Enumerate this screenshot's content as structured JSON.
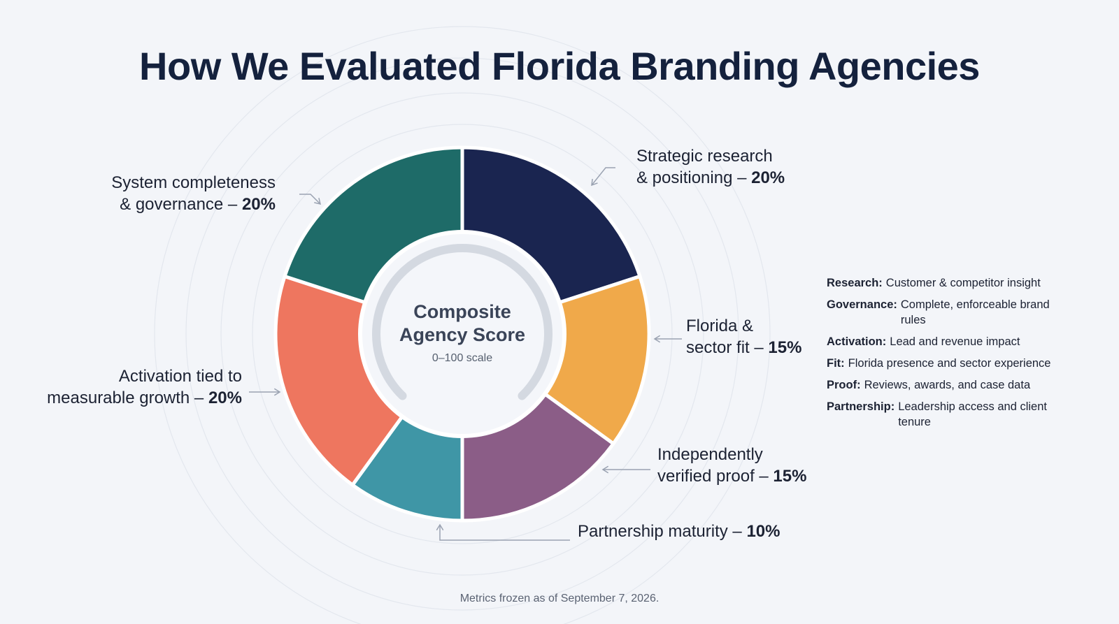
{
  "title": "How We Evaluated Florida Branding Agencies",
  "center": {
    "title_line1": "Composite",
    "title_line2": "Agency Score",
    "subtitle": "0–100 scale"
  },
  "labels": {
    "strategic": {
      "line1": "Strategic research",
      "line2_text": "& positioning – ",
      "pct": "20%"
    },
    "florida": {
      "line1": "Florida &",
      "line2_text": "sector fit – ",
      "pct": "15%"
    },
    "proof": {
      "line1": "Independently",
      "line2_text": "verified proof – ",
      "pct": "15%"
    },
    "partnership": {
      "line1_text": "Partnership maturity – ",
      "pct": "10%"
    },
    "activation": {
      "line1": "Activation tied to",
      "line2_text": "measurable growth – ",
      "pct": "20%"
    },
    "system": {
      "line1": "System completeness",
      "line2_text": "& governance – ",
      "pct": "20%"
    }
  },
  "definitions": [
    {
      "term": "Research:",
      "text": "Customer & competitor insight"
    },
    {
      "term": "Governance:",
      "text": "Complete, enforceable brand rules"
    },
    {
      "term": "Activation:",
      "text": "Lead and revenue impact"
    },
    {
      "term": "Fit:",
      "text": "Florida presence and sector experience"
    },
    {
      "term": "Proof:",
      "text": "Reviews, awards, and case data"
    },
    {
      "term": "Partnership:",
      "text": "Leadership access and client tenure"
    }
  ],
  "footer": "Metrics frozen as of September 7, 2026.",
  "chart_data": {
    "type": "pie",
    "title": "How We Evaluated Florida Branding Agencies",
    "slices": [
      {
        "name": "Strategic research & positioning",
        "value": 20,
        "color": "#1a2550"
      },
      {
        "name": "Florida & sector fit",
        "value": 15,
        "color": "#f0a94a"
      },
      {
        "name": "Independently verified proof",
        "value": 15,
        "color": "#8b5d87"
      },
      {
        "name": "Partnership maturity",
        "value": 10,
        "color": "#3f96a6"
      },
      {
        "name": "Activation tied to measurable growth",
        "value": 20,
        "color": "#ee765f"
      },
      {
        "name": "System completeness & governance",
        "value": 20,
        "color": "#1e6b68"
      }
    ],
    "total": 100
  }
}
